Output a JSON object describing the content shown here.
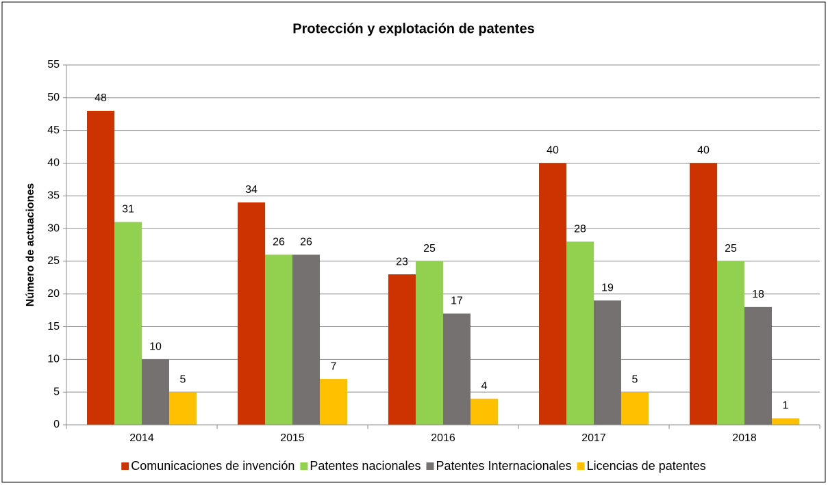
{
  "chart_data": {
    "type": "bar",
    "title": "Protección y explotación de patentes",
    "y_label": "Número de actuaciones",
    "categories": [
      "2014",
      "2015",
      "2016",
      "2017",
      "2018"
    ],
    "series": [
      {
        "name": "Comunicaciones de invención",
        "color": "#cc3300",
        "values": [
          48,
          34,
          23,
          40,
          40
        ]
      },
      {
        "name": "Patentes nacionales",
        "color": "#92d050",
        "values": [
          31,
          26,
          25,
          28,
          25
        ]
      },
      {
        "name": "Patentes Internacionales",
        "color": "#767171",
        "values": [
          10,
          26,
          17,
          19,
          18
        ]
      },
      {
        "name": "Licencias de patentes",
        "color": "#ffc000",
        "values": [
          5,
          7,
          4,
          5,
          1
        ]
      }
    ],
    "ylim": [
      0,
      55
    ],
    "yticks": [
      0,
      5,
      10,
      15,
      20,
      25,
      30,
      35,
      40,
      45,
      50,
      55
    ],
    "grid": true,
    "legend": "bottom"
  }
}
